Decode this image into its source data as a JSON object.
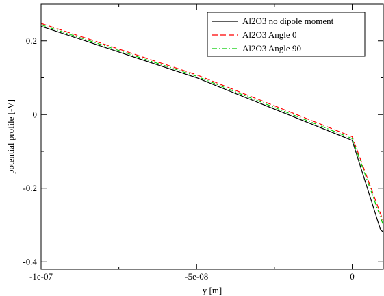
{
  "chart_data": {
    "type": "line",
    "title": "",
    "xlabel": "y [m]",
    "ylabel": "potential profile [-V]",
    "xlim": [
      -1e-07,
      1e-08
    ],
    "ylim": [
      -0.42,
      0.3
    ],
    "x_ticks": [
      {
        "value": -1e-07,
        "label": "-1e-07"
      },
      {
        "value": -5e-08,
        "label": "-5e-08"
      },
      {
        "value": 0,
        "label": "0"
      }
    ],
    "x_minor_ticks": [
      -7.5e-08,
      -2.5e-08
    ],
    "y_ticks": [
      {
        "value": 0.2,
        "label": "0.2"
      },
      {
        "value": 0,
        "label": "0"
      },
      {
        "value": -0.2,
        "label": "-0.2"
      },
      {
        "value": -0.4,
        "label": "-0.4"
      }
    ],
    "y_minor_ticks": [
      0.1,
      -0.1,
      -0.3
    ],
    "grid": false,
    "legend": "top-right",
    "series": [
      {
        "name": "Al2O3 no dipole moment",
        "color": "#000000",
        "dash": "solid",
        "x": [
          -1e-07,
          -5e-08,
          0,
          9e-09,
          1e-08
        ],
        "y": [
          0.24,
          0.1,
          -0.07,
          -0.31,
          -0.32
        ]
      },
      {
        "name": "Al2O3 Angle 0",
        "color": "#ff0000",
        "dash": "dashed",
        "x": [
          -1e-07,
          -5e-08,
          0,
          1e-08
        ],
        "y": [
          0.248,
          0.108,
          -0.06,
          -0.29
        ]
      },
      {
        "name": "Al2O3 Angle 90",
        "color": "#00cc00",
        "dash": "dashdot",
        "x": [
          -1e-07,
          -5e-08,
          0,
          1e-08
        ],
        "y": [
          0.244,
          0.104,
          -0.065,
          -0.3
        ]
      }
    ]
  }
}
